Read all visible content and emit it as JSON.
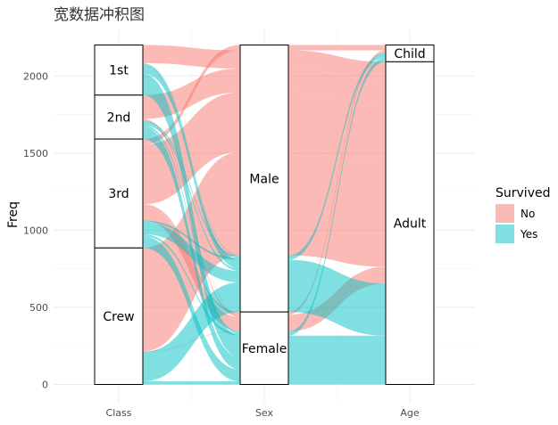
{
  "chart_data": {
    "type": "alluvial",
    "title": "宽数据冲积图",
    "ylabel": "Freq",
    "xlabel": "",
    "axes": [
      "Class",
      "Sex",
      "Age"
    ],
    "ylim": [
      0,
      2201
    ],
    "yticks": [
      0,
      500,
      1000,
      1500,
      2000
    ],
    "fill_variable": "Survived",
    "legend": {
      "title": "Survived",
      "position": "right",
      "entries": [
        {
          "label": "No",
          "color": "#F8766D"
        },
        {
          "label": "Yes",
          "color": "#00BFC4"
        }
      ]
    },
    "strata": {
      "Class": [
        "1st",
        "2nd",
        "3rd",
        "Crew"
      ],
      "Sex": [
        "Male",
        "Female"
      ],
      "Age": [
        "Child",
        "Adult"
      ]
    },
    "flows": [
      {
        "Class": "1st",
        "Sex": "Male",
        "Age": "Child",
        "Survived": "No",
        "Freq": 0
      },
      {
        "Class": "2nd",
        "Sex": "Male",
        "Age": "Child",
        "Survived": "No",
        "Freq": 0
      },
      {
        "Class": "3rd",
        "Sex": "Male",
        "Age": "Child",
        "Survived": "No",
        "Freq": 35
      },
      {
        "Class": "Crew",
        "Sex": "Male",
        "Age": "Child",
        "Survived": "No",
        "Freq": 0
      },
      {
        "Class": "1st",
        "Sex": "Female",
        "Age": "Child",
        "Survived": "No",
        "Freq": 0
      },
      {
        "Class": "2nd",
        "Sex": "Female",
        "Age": "Child",
        "Survived": "No",
        "Freq": 0
      },
      {
        "Class": "3rd",
        "Sex": "Female",
        "Age": "Child",
        "Survived": "No",
        "Freq": 17
      },
      {
        "Class": "Crew",
        "Sex": "Female",
        "Age": "Child",
        "Survived": "No",
        "Freq": 0
      },
      {
        "Class": "1st",
        "Sex": "Male",
        "Age": "Adult",
        "Survived": "No",
        "Freq": 118
      },
      {
        "Class": "2nd",
        "Sex": "Male",
        "Age": "Adult",
        "Survived": "No",
        "Freq": 154
      },
      {
        "Class": "3rd",
        "Sex": "Male",
        "Age": "Adult",
        "Survived": "No",
        "Freq": 387
      },
      {
        "Class": "Crew",
        "Sex": "Male",
        "Age": "Adult",
        "Survived": "No",
        "Freq": 670
      },
      {
        "Class": "1st",
        "Sex": "Female",
        "Age": "Adult",
        "Survived": "No",
        "Freq": 4
      },
      {
        "Class": "2nd",
        "Sex": "Female",
        "Age": "Adult",
        "Survived": "No",
        "Freq": 13
      },
      {
        "Class": "3rd",
        "Sex": "Female",
        "Age": "Adult",
        "Survived": "No",
        "Freq": 89
      },
      {
        "Class": "Crew",
        "Sex": "Female",
        "Age": "Adult",
        "Survived": "No",
        "Freq": 3
      },
      {
        "Class": "1st",
        "Sex": "Male",
        "Age": "Child",
        "Survived": "Yes",
        "Freq": 5
      },
      {
        "Class": "2nd",
        "Sex": "Male",
        "Age": "Child",
        "Survived": "Yes",
        "Freq": 11
      },
      {
        "Class": "3rd",
        "Sex": "Male",
        "Age": "Child",
        "Survived": "Yes",
        "Freq": 13
      },
      {
        "Class": "Crew",
        "Sex": "Male",
        "Age": "Child",
        "Survived": "Yes",
        "Freq": 0
      },
      {
        "Class": "1st",
        "Sex": "Female",
        "Age": "Child",
        "Survived": "Yes",
        "Freq": 1
      },
      {
        "Class": "2nd",
        "Sex": "Female",
        "Age": "Child",
        "Survived": "Yes",
        "Freq": 13
      },
      {
        "Class": "3rd",
        "Sex": "Female",
        "Age": "Child",
        "Survived": "Yes",
        "Freq": 14
      },
      {
        "Class": "Crew",
        "Sex": "Female",
        "Age": "Child",
        "Survived": "Yes",
        "Freq": 0
      },
      {
        "Class": "1st",
        "Sex": "Male",
        "Age": "Adult",
        "Survived": "Yes",
        "Freq": 57
      },
      {
        "Class": "2nd",
        "Sex": "Male",
        "Age": "Adult",
        "Survived": "Yes",
        "Freq": 14
      },
      {
        "Class": "3rd",
        "Sex": "Male",
        "Age": "Adult",
        "Survived": "Yes",
        "Freq": 75
      },
      {
        "Class": "Crew",
        "Sex": "Male",
        "Age": "Adult",
        "Survived": "Yes",
        "Freq": 192
      },
      {
        "Class": "1st",
        "Sex": "Female",
        "Age": "Adult",
        "Survived": "Yes",
        "Freq": 140
      },
      {
        "Class": "2nd",
        "Sex": "Female",
        "Age": "Adult",
        "Survived": "Yes",
        "Freq": 80
      },
      {
        "Class": "3rd",
        "Sex": "Female",
        "Age": "Adult",
        "Survived": "Yes",
        "Freq": 76
      },
      {
        "Class": "Crew",
        "Sex": "Female",
        "Age": "Adult",
        "Survived": "Yes",
        "Freq": 20
      }
    ]
  }
}
